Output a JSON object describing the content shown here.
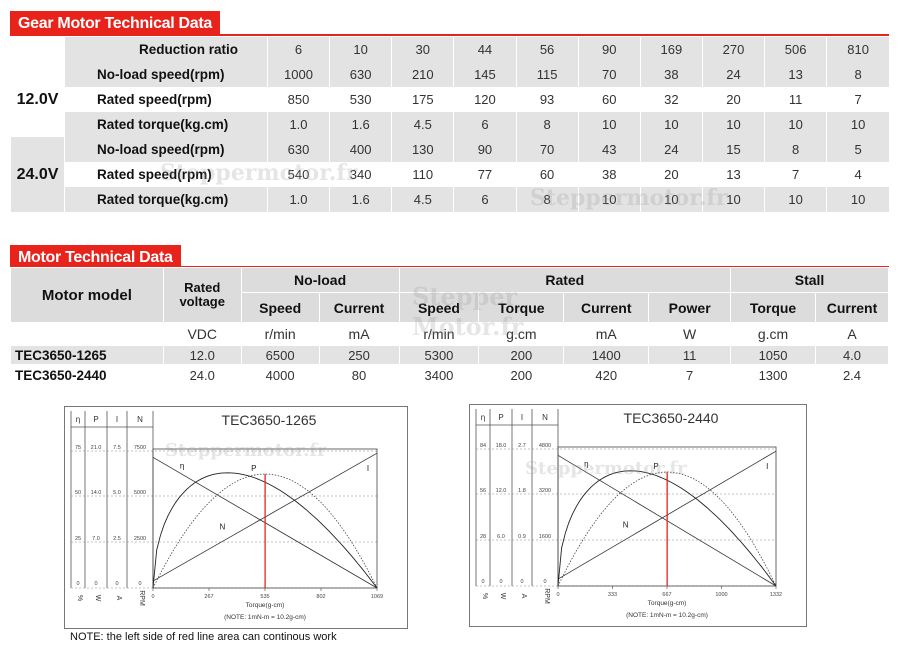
{
  "gear_section": {
    "title": "Gear Motor Technical Data",
    "reduction_label": "Reduction ratio",
    "ratios": [
      "6",
      "10",
      "30",
      "44",
      "56",
      "90",
      "169",
      "270",
      "506",
      "810"
    ],
    "groups": [
      {
        "voltage": "12.0V",
        "rows": [
          {
            "label": "No-load speed(rpm)",
            "values": [
              "1000",
              "630",
              "210",
              "145",
              "115",
              "70",
              "38",
              "24",
              "13",
              "8"
            ]
          },
          {
            "label": "Rated speed(rpm)",
            "values": [
              "850",
              "530",
              "175",
              "120",
              "93",
              "60",
              "32",
              "20",
              "11",
              "7"
            ]
          },
          {
            "label": "Rated torque(kg.cm)",
            "values": [
              "1.0",
              "1.6",
              "4.5",
              "6",
              "8",
              "10",
              "10",
              "10",
              "10",
              "10"
            ]
          }
        ]
      },
      {
        "voltage": "24.0V",
        "rows": [
          {
            "label": "No-load speed(rpm)",
            "values": [
              "630",
              "400",
              "130",
              "90",
              "70",
              "43",
              "24",
              "15",
              "8",
              "5"
            ]
          },
          {
            "label": "Rated speed(rpm)",
            "values": [
              "540",
              "340",
              "110",
              "77",
              "60",
              "38",
              "20",
              "13",
              "7",
              "4"
            ]
          },
          {
            "label": "Rated torque(kg.cm)",
            "values": [
              "1.0",
              "1.6",
              "4.5",
              "6",
              "8",
              "10",
              "10",
              "10",
              "10",
              "10"
            ]
          }
        ]
      }
    ]
  },
  "motor_section": {
    "title": "Motor Technical Data",
    "model_header": "Motor model",
    "rated_voltage_header": "Rated voltage",
    "groups": {
      "noload": "No-load",
      "rated": "Rated",
      "stall": "Stall"
    },
    "subheaders": [
      "Speed",
      "Current",
      "Speed",
      "Torque",
      "Current",
      "Power",
      "Torque",
      "Current"
    ],
    "units": [
      "VDC",
      "r/min",
      "mA",
      "r/min",
      "g.cm",
      "mA",
      "W",
      "g.cm",
      "A"
    ],
    "rows": [
      {
        "model": "TEC3650-1265",
        "values": [
          "12.0",
          "6500",
          "250",
          "5300",
          "200",
          "1400",
          "11",
          "1050",
          "4.0"
        ]
      },
      {
        "model": "TEC3650-2440",
        "values": [
          "24.0",
          "4000",
          "80",
          "3400",
          "200",
          "420",
          "7",
          "1300",
          "2.4"
        ]
      }
    ]
  },
  "charts": [
    {
      "title": "TEC3650-1265",
      "scale_headers": [
        "η",
        "P",
        "I",
        "N"
      ],
      "scale_rows": [
        [
          "75",
          "21.0",
          "7.5",
          "7500"
        ],
        [
          "50",
          "14.0",
          "5.0",
          "5000"
        ],
        [
          "25",
          "7.0",
          "2.5",
          "2500"
        ],
        [
          "0",
          "0",
          "0",
          "0"
        ]
      ],
      "unit_labels": [
        "%",
        "W",
        "A",
        "RPM"
      ],
      "x_ticks": [
        "0",
        "267",
        "535",
        "802",
        "1069"
      ],
      "x_label": "Torque(g-cm)",
      "note": "(NOTE: 1mN-m = 10.2g-cm)",
      "curve_labels": [
        "η",
        "P",
        "N",
        "I"
      ],
      "red_line_x": 535,
      "x_max": 1069
    },
    {
      "title": "TEC3650-2440",
      "scale_headers": [
        "η",
        "P",
        "I",
        "N"
      ],
      "scale_rows": [
        [
          "84",
          "18.0",
          "2.7",
          "4800"
        ],
        [
          "56",
          "12.0",
          "1.8",
          "3200"
        ],
        [
          "28",
          "6.0",
          "0.9",
          "1600"
        ],
        [
          "0",
          "0",
          "0",
          "0"
        ]
      ],
      "unit_labels": [
        "%",
        "W",
        "A",
        "RPM"
      ],
      "x_ticks": [
        "0",
        "333",
        "667",
        "1000",
        "1332"
      ],
      "x_label": "Torque(g-cm)",
      "note": "(NOTE: 1mN-m = 10.2g-cm)",
      "curve_labels": [
        "η",
        "P",
        "N",
        "I"
      ],
      "red_line_x": 667,
      "x_max": 1332
    }
  ],
  "footer_note": "NOTE: the left side of red line area can continous work",
  "watermarks": [
    "Steppermotor.fr",
    "Stepper",
    "Motor.fr"
  ],
  "colors": {
    "accent": "#e8231c",
    "row_grey": "#e3e3e3",
    "header_grey": "#dcdcdc"
  }
}
